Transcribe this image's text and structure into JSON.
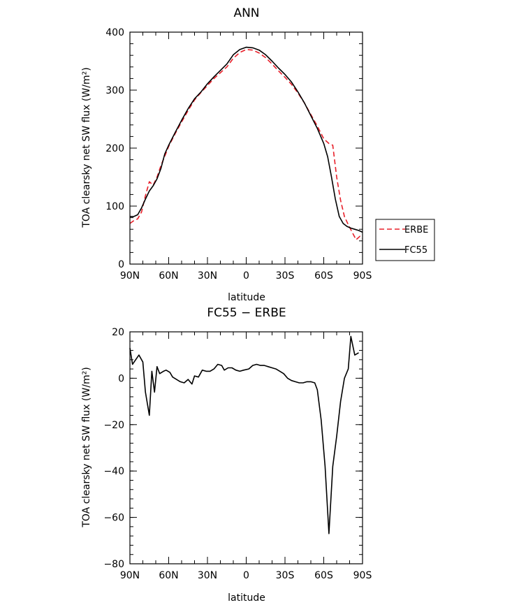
{
  "chart_data": [
    {
      "type": "line",
      "title": "ANN",
      "xlabel": "latitude",
      "ylabel": "TOA clearsky net SW flux (W/m²)",
      "xlim": [
        90,
        -90
      ],
      "ylim": [
        0,
        400
      ],
      "x_ticks": [
        {
          "value": 90,
          "label": "90N"
        },
        {
          "value": 60,
          "label": "60N"
        },
        {
          "value": 30,
          "label": "30N"
        },
        {
          "value": 0,
          "label": "0"
        },
        {
          "value": -30,
          "label": "30S"
        },
        {
          "value": -60,
          "label": "60S"
        },
        {
          "value": -90,
          "label": "90S"
        }
      ],
      "y_ticks": [
        0,
        100,
        200,
        300,
        400
      ],
      "legend_position": "right",
      "series": [
        {
          "name": "ERBE",
          "color": "#e8202a",
          "dash": "dashed",
          "points": [
            [
              90,
              70
            ],
            [
              87,
              75
            ],
            [
              84,
              78
            ],
            [
              81,
              90
            ],
            [
              78,
              118
            ],
            [
              75,
              142
            ],
            [
              72,
              136
            ],
            [
              69,
              150
            ],
            [
              66,
              170
            ],
            [
              63,
              186
            ],
            [
              60,
              203
            ],
            [
              55,
              225
            ],
            [
              50,
              245
            ],
            [
              45,
              265
            ],
            [
              40,
              283
            ],
            [
              35,
              296
            ],
            [
              30,
              308
            ],
            [
              25,
              320
            ],
            [
              20,
              330
            ],
            [
              15,
              340
            ],
            [
              10,
              355
            ],
            [
              5,
              365
            ],
            [
              0,
              370
            ],
            [
              -5,
              369
            ],
            [
              -10,
              364
            ],
            [
              -15,
              356
            ],
            [
              -20,
              345
            ],
            [
              -25,
              333
            ],
            [
              -30,
              322
            ],
            [
              -35,
              310
            ],
            [
              -40,
              295
            ],
            [
              -45,
              278
            ],
            [
              -50,
              258
            ],
            [
              -55,
              238
            ],
            [
              -60,
              216
            ],
            [
              -64,
              208
            ],
            [
              -67,
              205
            ],
            [
              -70,
              150
            ],
            [
              -73,
              110
            ],
            [
              -76,
              82
            ],
            [
              -79,
              68
            ],
            [
              -82,
              55
            ],
            [
              -85,
              42
            ],
            [
              -88,
              48
            ],
            [
              -90,
              44
            ]
          ]
        },
        {
          "name": "FC55",
          "color": "#000000",
          "dash": "solid",
          "points": [
            [
              90,
              82
            ],
            [
              87,
              82
            ],
            [
              84,
              85
            ],
            [
              81,
              97
            ],
            [
              78,
              112
            ],
            [
              75,
              126
            ],
            [
              72,
              135
            ],
            [
              69,
              147
            ],
            [
              66,
              165
            ],
            [
              63,
              190
            ],
            [
              60,
              205
            ],
            [
              55,
              227
            ],
            [
              50,
              248
            ],
            [
              45,
              268
            ],
            [
              40,
              285
            ],
            [
              35,
              297
            ],
            [
              30,
              311
            ],
            [
              25,
              323
            ],
            [
              20,
              334
            ],
            [
              15,
              345
            ],
            [
              10,
              361
            ],
            [
              5,
              370
            ],
            [
              0,
              374
            ],
            [
              -5,
              373
            ],
            [
              -10,
              369
            ],
            [
              -15,
              361
            ],
            [
              -20,
              350
            ],
            [
              -25,
              338
            ],
            [
              -30,
              327
            ],
            [
              -35,
              314
            ],
            [
              -40,
              297
            ],
            [
              -45,
              278
            ],
            [
              -50,
              256
            ],
            [
              -55,
              234
            ],
            [
              -60,
              208
            ],
            [
              -63,
              185
            ],
            [
              -66,
              150
            ],
            [
              -69,
              112
            ],
            [
              -72,
              82
            ],
            [
              -75,
              70
            ],
            [
              -78,
              65
            ],
            [
              -81,
              62
            ],
            [
              -84,
              60
            ],
            [
              -87,
              58
            ],
            [
              -90,
              55
            ]
          ]
        }
      ]
    },
    {
      "type": "line",
      "title": "FC55 − ERBE",
      "xlabel": "latitude",
      "ylabel": "TOA clearsky net SW flux (W/m²)",
      "xlim": [
        90,
        -90
      ],
      "ylim": [
        -80,
        20
      ],
      "x_ticks": [
        {
          "value": 90,
          "label": "90N"
        },
        {
          "value": 60,
          "label": "60N"
        },
        {
          "value": 30,
          "label": "30N"
        },
        {
          "value": 0,
          "label": "0"
        },
        {
          "value": -30,
          "label": "30S"
        },
        {
          "value": -60,
          "label": "60S"
        },
        {
          "value": -90,
          "label": "90S"
        }
      ],
      "y_ticks": [
        {
          "value": 20,
          "label": "20"
        },
        {
          "value": 0,
          "label": "0"
        },
        {
          "value": -20,
          "label": "−20"
        },
        {
          "value": -40,
          "label": "−40"
        },
        {
          "value": -60,
          "label": "−60"
        },
        {
          "value": -80,
          "label": "−80"
        }
      ],
      "series": [
        {
          "color": "#000000",
          "dash": "solid",
          "points": [
            [
              90,
              13
            ],
            [
              88,
              6
            ],
            [
              83,
              10
            ],
            [
              80,
              7
            ],
            [
              78,
              -6
            ],
            [
              75,
              -16
            ],
            [
              73,
              3
            ],
            [
              71,
              -6
            ],
            [
              69,
              5
            ],
            [
              67,
              2
            ],
            [
              64,
              3
            ],
            [
              62,
              3.5
            ],
            [
              59,
              2.5
            ],
            [
              57,
              0.5
            ],
            [
              54,
              -0.5
            ],
            [
              51,
              -1.5
            ],
            [
              48,
              -2
            ],
            [
              45,
              -0.5
            ],
            [
              42,
              -2.5
            ],
            [
              40,
              1
            ],
            [
              37,
              0.5
            ],
            [
              34,
              3.5
            ],
            [
              31,
              3
            ],
            [
              28,
              3
            ],
            [
              25,
              4
            ],
            [
              22,
              6
            ],
            [
              19,
              5.5
            ],
            [
              17,
              3.5
            ],
            [
              14,
              4.5
            ],
            [
              11,
              4.5
            ],
            [
              8,
              3.5
            ],
            [
              5,
              3
            ],
            [
              2,
              3.5
            ],
            [
              -2,
              4
            ],
            [
              -5,
              5.5
            ],
            [
              -8,
              6
            ],
            [
              -11,
              5.5
            ],
            [
              -14,
              5.5
            ],
            [
              -17,
              5
            ],
            [
              -20,
              4.5
            ],
            [
              -23,
              4
            ],
            [
              -26,
              3
            ],
            [
              -29,
              2
            ],
            [
              -32,
              0
            ],
            [
              -35,
              -1
            ],
            [
              -38,
              -1.5
            ],
            [
              -41,
              -2
            ],
            [
              -44,
              -2
            ],
            [
              -47,
              -1.5
            ],
            [
              -50,
              -1.5
            ],
            [
              -53,
              -2
            ],
            [
              -55,
              -5
            ],
            [
              -58,
              -18
            ],
            [
              -61,
              -38
            ],
            [
              -64,
              -67
            ],
            [
              -67,
              -38
            ],
            [
              -70,
              -25
            ],
            [
              -73,
              -10
            ],
            [
              -76,
              0
            ],
            [
              -79,
              4
            ],
            [
              -81,
              18
            ],
            [
              -84,
              10
            ],
            [
              -87,
              11
            ]
          ]
        }
      ]
    }
  ]
}
